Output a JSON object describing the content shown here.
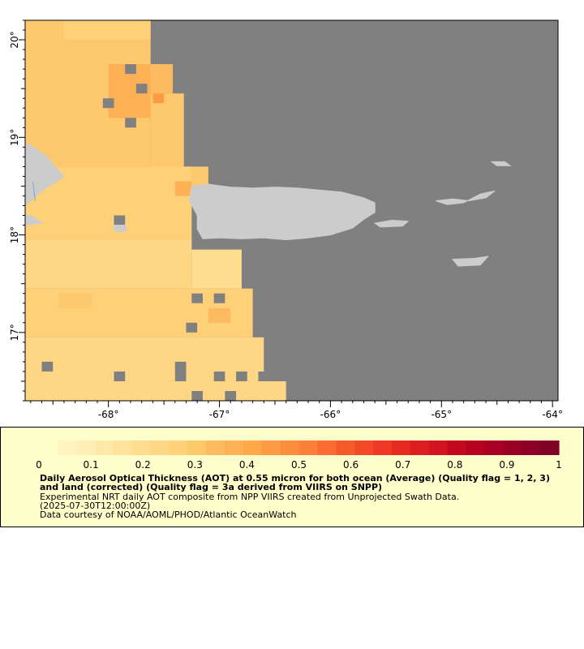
{
  "map": {
    "type": "heatmap",
    "x_axis": {
      "range": [
        -68.75,
        -63.95
      ],
      "ticks": [
        -68,
        -67,
        -66,
        -65,
        -64
      ],
      "tick_labels": [
        "-68°",
        "-67°",
        "-66°",
        "-65°",
        "-64°"
      ]
    },
    "y_axis": {
      "range": [
        16.3,
        20.2
      ],
      "ticks": [
        17,
        18,
        19,
        20
      ],
      "tick_labels": [
        "17°",
        "18°",
        "19°",
        "20°"
      ]
    },
    "colors": {
      "no_data": "#808080",
      "land": "#cccccc",
      "water_line": "#7aa7d9"
    },
    "aot_cells": [
      {
        "lon_min": -68.75,
        "lon_max": -67.62,
        "lat_min": 18.7,
        "lat_max": 20.2,
        "value": 0.3
      },
      {
        "lon_min": -68.4,
        "lon_max": -67.62,
        "lat_min": 20.0,
        "lat_max": 20.2,
        "value": 0.26
      },
      {
        "lon_min": -68.0,
        "lon_max": -67.5,
        "lat_min": 19.2,
        "lat_max": 19.75,
        "value": 0.36
      },
      {
        "lon_min": -67.62,
        "lon_max": -67.42,
        "lat_min": 19.45,
        "lat_max": 19.75,
        "value": 0.33
      },
      {
        "lon_min": -67.62,
        "lon_max": -67.32,
        "lat_min": 18.45,
        "lat_max": 19.45,
        "value": 0.31
      },
      {
        "lon_min": -67.62,
        "lon_max": -67.1,
        "lat_min": 18.45,
        "lat_max": 18.7,
        "value": 0.3
      },
      {
        "lon_min": -68.75,
        "lon_max": -67.25,
        "lat_min": 17.95,
        "lat_max": 18.7,
        "value": 0.27
      },
      {
        "lon_min": -68.75,
        "lon_max": -67.25,
        "lat_min": 17.45,
        "lat_max": 17.95,
        "value": 0.24
      },
      {
        "lon_min": -67.25,
        "lon_max": -66.8,
        "lat_min": 17.45,
        "lat_max": 17.85,
        "value": 0.21
      },
      {
        "lon_min": -68.75,
        "lon_max": -66.7,
        "lat_min": 16.95,
        "lat_max": 17.45,
        "value": 0.26
      },
      {
        "lon_min": -68.75,
        "lon_max": -66.6,
        "lat_min": 16.5,
        "lat_max": 16.95,
        "value": 0.24
      },
      {
        "lon_min": -68.75,
        "lon_max": -66.4,
        "lat_min": 16.3,
        "lat_max": 16.5,
        "value": 0.22
      },
      {
        "lon_min": -68.45,
        "lon_max": -68.15,
        "lat_min": 17.25,
        "lat_max": 17.4,
        "value": 0.32
      },
      {
        "lon_min": -67.6,
        "lon_max": -67.5,
        "lat_min": 19.35,
        "lat_max": 19.45,
        "value": 0.45
      },
      {
        "lon_min": -67.4,
        "lon_max": -67.25,
        "lat_min": 18.4,
        "lat_max": 18.55,
        "value": 0.38
      },
      {
        "lon_min": -67.1,
        "lon_max": -66.9,
        "lat_min": 17.1,
        "lat_max": 17.25,
        "value": 0.35
      }
    ],
    "no_data_cells": [
      {
        "lon_min": -67.85,
        "lon_max": -67.75,
        "lat_min": 19.65,
        "lat_max": 19.75
      },
      {
        "lon_min": -67.75,
        "lon_max": -67.65,
        "lat_min": 19.45,
        "lat_max": 19.55
      },
      {
        "lon_min": -68.05,
        "lon_max": -67.95,
        "lat_min": 19.3,
        "lat_max": 19.4
      },
      {
        "lon_min": -67.85,
        "lon_max": -67.75,
        "lat_min": 19.1,
        "lat_max": 19.2
      },
      {
        "lon_min": -67.95,
        "lon_max": -67.85,
        "lat_min": 18.1,
        "lat_max": 18.2
      },
      {
        "lon_min": -67.25,
        "lon_max": -67.15,
        "lat_min": 17.3,
        "lat_max": 17.4
      },
      {
        "lon_min": -67.05,
        "lon_max": -66.95,
        "lat_min": 17.3,
        "lat_max": 17.4
      },
      {
        "lon_min": -67.3,
        "lon_max": -67.2,
        "lat_min": 17.0,
        "lat_max": 17.1
      },
      {
        "lon_min": -68.6,
        "lon_max": -68.5,
        "lat_min": 16.6,
        "lat_max": 16.7
      },
      {
        "lon_min": -67.95,
        "lon_max": -67.85,
        "lat_min": 16.5,
        "lat_max": 16.6
      },
      {
        "lon_min": -67.4,
        "lon_max": -67.3,
        "lat_min": 16.5,
        "lat_max": 16.7
      },
      {
        "lon_min": -67.05,
        "lon_max": -66.95,
        "lat_min": 16.5,
        "lat_max": 16.6
      },
      {
        "lon_min": -66.85,
        "lon_max": -66.75,
        "lat_min": 16.5,
        "lat_max": 16.6
      },
      {
        "lon_min": -66.65,
        "lon_max": -66.55,
        "lat_min": 16.5,
        "lat_max": 16.6
      },
      {
        "lon_min": -67.25,
        "lon_max": -67.15,
        "lat_min": 16.3,
        "lat_max": 16.4
      },
      {
        "lon_min": -66.95,
        "lon_max": -66.85,
        "lat_min": 16.3,
        "lat_max": 16.4
      }
    ],
    "land_polygons": [
      {
        "name": "hispaniola",
        "points": [
          [
            -68.75,
            18.95
          ],
          [
            -68.65,
            18.88
          ],
          [
            -68.55,
            18.8
          ],
          [
            -68.48,
            18.7
          ],
          [
            -68.4,
            18.6
          ],
          [
            -68.5,
            18.52
          ],
          [
            -68.6,
            18.45
          ],
          [
            -68.7,
            18.35
          ],
          [
            -68.75,
            18.3
          ]
        ]
      },
      {
        "name": "hispaniola-south",
        "points": [
          [
            -68.75,
            18.2
          ],
          [
            -68.7,
            18.2
          ],
          [
            -68.63,
            18.15
          ],
          [
            -68.6,
            18.12
          ],
          [
            -68.75,
            18.1
          ]
        ]
      },
      {
        "name": "mona-island",
        "points": [
          [
            -67.95,
            18.1
          ],
          [
            -67.85,
            18.1
          ],
          [
            -67.83,
            18.05
          ],
          [
            -67.9,
            18.03
          ],
          [
            -67.95,
            18.05
          ]
        ]
      },
      {
        "name": "puerto-rico",
        "points": [
          [
            -67.25,
            18.5
          ],
          [
            -67.1,
            18.52
          ],
          [
            -66.9,
            18.49
          ],
          [
            -66.7,
            18.48
          ],
          [
            -66.5,
            18.49
          ],
          [
            -66.3,
            18.48
          ],
          [
            -66.1,
            18.46
          ],
          [
            -65.9,
            18.44
          ],
          [
            -65.7,
            18.38
          ],
          [
            -65.6,
            18.33
          ],
          [
            -65.6,
            18.23
          ],
          [
            -65.7,
            18.16
          ],
          [
            -65.8,
            18.07
          ],
          [
            -66.0,
            18.0
          ],
          [
            -66.2,
            17.97
          ],
          [
            -66.4,
            17.95
          ],
          [
            -66.6,
            17.97
          ],
          [
            -66.8,
            17.96
          ],
          [
            -67.0,
            17.97
          ],
          [
            -67.15,
            17.96
          ],
          [
            -67.2,
            18.06
          ],
          [
            -67.2,
            18.2
          ],
          [
            -67.27,
            18.35
          ]
        ]
      },
      {
        "name": "vieques",
        "points": [
          [
            -65.6,
            18.12
          ],
          [
            -65.45,
            18.15
          ],
          [
            -65.3,
            18.14
          ],
          [
            -65.35,
            18.09
          ],
          [
            -65.55,
            18.08
          ]
        ]
      },
      {
        "name": "culebra-st-thomas",
        "points": [
          [
            -65.05,
            18.35
          ],
          [
            -64.9,
            18.37
          ],
          [
            -64.75,
            18.35
          ],
          [
            -64.6,
            18.38
          ],
          [
            -64.52,
            18.45
          ],
          [
            -64.65,
            18.42
          ],
          [
            -64.8,
            18.33
          ],
          [
            -64.95,
            18.31
          ]
        ]
      },
      {
        "name": "tortola",
        "points": [
          [
            -64.55,
            18.75
          ],
          [
            -64.43,
            18.75
          ],
          [
            -64.38,
            18.71
          ],
          [
            -64.5,
            18.71
          ]
        ]
      },
      {
        "name": "st-croix",
        "points": [
          [
            -64.9,
            17.75
          ],
          [
            -64.7,
            17.76
          ],
          [
            -64.58,
            17.78
          ],
          [
            -64.65,
            17.69
          ],
          [
            -64.85,
            17.68
          ]
        ]
      }
    ]
  },
  "colorbar": {
    "vmin": 0,
    "vmax": 1,
    "colors": [
      "#ffffcc",
      "#fff4c0",
      "#ffefb4",
      "#ffe9a8",
      "#ffe39c",
      "#ffdd90",
      "#ffd784",
      "#fed078",
      "#fec96c",
      "#feba60",
      "#feb154",
      "#fea848",
      "#fd9a44",
      "#fd8f3c",
      "#fc7e38",
      "#fb6c32",
      "#f85a2c",
      "#f24a28",
      "#ee3924",
      "#e62a22",
      "#dc1e20",
      "#d1141f",
      "#c4091f",
      "#b70222",
      "#a80125",
      "#990026",
      "#8a0026",
      "#800026"
    ],
    "tick_values": [
      0,
      0.1,
      0.2,
      0.3,
      0.4,
      0.5,
      0.6,
      0.7,
      0.8,
      0.9,
      1
    ],
    "tick_labels": [
      "0",
      "0.1",
      "0.2",
      "0.3",
      "0.4",
      "0.5",
      "0.6",
      "0.7",
      "0.8",
      "0.9",
      "1"
    ]
  },
  "caption": {
    "title": "Daily Aerosol Optical Thickness (AOT) at 0.55 micron for both ocean (Average) (Quality flag = 1, 2, 3) and land (corrected) (Quality flag = 3a derived from VIIRS on SNPP)",
    "line1": "Experimental NRT daily AOT composite from NPP VIIRS created from Unprojected Swath Data.",
    "line2": "(2025-07-30T12:00:00Z)",
    "line3": "Data courtesy of NOAA/AOML/PHOD/Atlantic OceanWatch"
  }
}
